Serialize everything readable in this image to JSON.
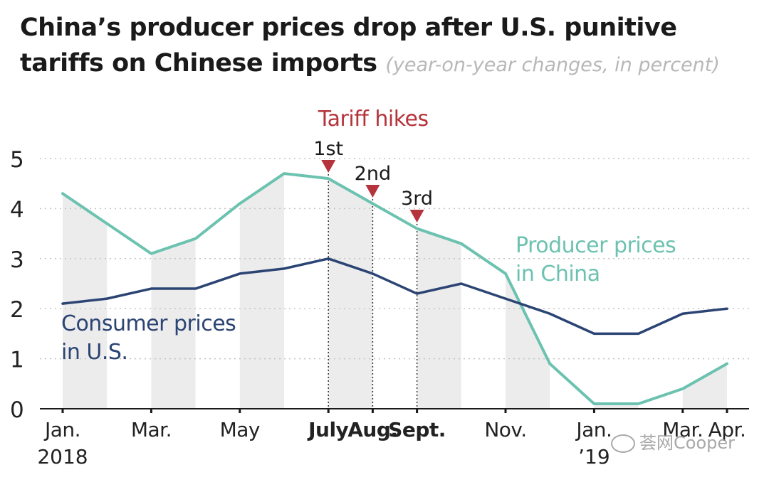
{
  "title": {
    "main": "China’s producer prices drop after U.S. punitive tariffs on Chinese imports",
    "subtitle": "(year-on-year changes, in percent)"
  },
  "watermark": "荟网Cooper",
  "chart_data": {
    "type": "line",
    "ylim": [
      0,
      5
    ],
    "yticks": [
      0,
      1,
      2,
      3,
      4,
      5
    ],
    "grid": true,
    "x": [
      "2018-01",
      "2018-02",
      "2018-03",
      "2018-04",
      "2018-05",
      "2018-06",
      "2018-07",
      "2018-08",
      "2018-09",
      "2018-10",
      "2018-11",
      "2018-12",
      "2019-01",
      "2019-02",
      "2019-03",
      "2019-04"
    ],
    "x_tick_labels": [
      {
        "month": "2018-01",
        "text": "Jan.",
        "line2": "2018",
        "bold": false
      },
      {
        "month": "2018-03",
        "text": "Mar.",
        "line2": "",
        "bold": false
      },
      {
        "month": "2018-05",
        "text": "May",
        "line2": "",
        "bold": false
      },
      {
        "month": "2018-07",
        "text": "July",
        "line2": "",
        "bold": true
      },
      {
        "month": "2018-08",
        "text": "Aug.",
        "line2": "",
        "bold": true
      },
      {
        "month": "2018-09",
        "text": "Sept.",
        "line2": "",
        "bold": true
      },
      {
        "month": "2018-11",
        "text": "Nov.",
        "line2": "",
        "bold": false
      },
      {
        "month": "2019-01",
        "text": "Jan.",
        "line2": "’19",
        "bold": false
      },
      {
        "month": "2019-03",
        "text": "Mar.",
        "line2": "",
        "bold": false
      },
      {
        "month": "2019-04",
        "text": "Apr.",
        "line2": "",
        "bold": false
      }
    ],
    "series": [
      {
        "name": "Producer prices in China",
        "label_lines": [
          "Producer prices",
          "in China"
        ],
        "color": "#6cc2b0",
        "values": [
          4.3,
          3.7,
          3.1,
          3.4,
          4.1,
          4.7,
          4.6,
          4.1,
          3.6,
          3.3,
          2.7,
          0.9,
          0.1,
          0.1,
          0.4,
          0.9
        ]
      },
      {
        "name": "Consumer prices in U.S.",
        "label_lines": [
          "Consumer prices",
          "in U.S."
        ],
        "color": "#2b4473",
        "values": [
          2.1,
          2.2,
          2.4,
          2.4,
          2.7,
          2.8,
          3.0,
          2.7,
          2.3,
          2.5,
          2.2,
          1.9,
          1.5,
          1.5,
          1.9,
          2.0
        ]
      }
    ],
    "annotations": {
      "header": "Tariff hikes",
      "header_color": "#b5333b",
      "marker_color": "#b5333b",
      "hikes": [
        {
          "label": "1st",
          "month": "2018-07"
        },
        {
          "label": "2nd",
          "month": "2018-08"
        },
        {
          "label": "3rd",
          "month": "2018-09"
        }
      ]
    },
    "band_color": "#ececec"
  }
}
